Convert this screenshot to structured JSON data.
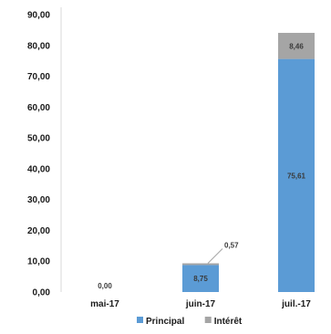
{
  "chart_data": {
    "type": "bar",
    "stacked": true,
    "categories": [
      "mai-17",
      "juin-17",
      "juil.-17"
    ],
    "series": [
      {
        "name": "Principal",
        "color": "#5b9bd5",
        "values": [
          0.0,
          8.75,
          75.61
        ],
        "labels": [
          "0,00",
          "8,75",
          "75,61"
        ]
      },
      {
        "name": "Intérêt",
        "color": "#a5a5a5",
        "values": [
          0.0,
          0.57,
          8.46
        ],
        "labels": [
          "",
          "0,57",
          "8,46"
        ]
      }
    ],
    "yticks": [
      "0,00",
      "10,00",
      "20,00",
      "30,00",
      "40,00",
      "50,00",
      "60,00",
      "70,00",
      "80,00",
      "90,00"
    ],
    "ylim": [
      0,
      90
    ],
    "grid": false,
    "legend": "bottom"
  }
}
